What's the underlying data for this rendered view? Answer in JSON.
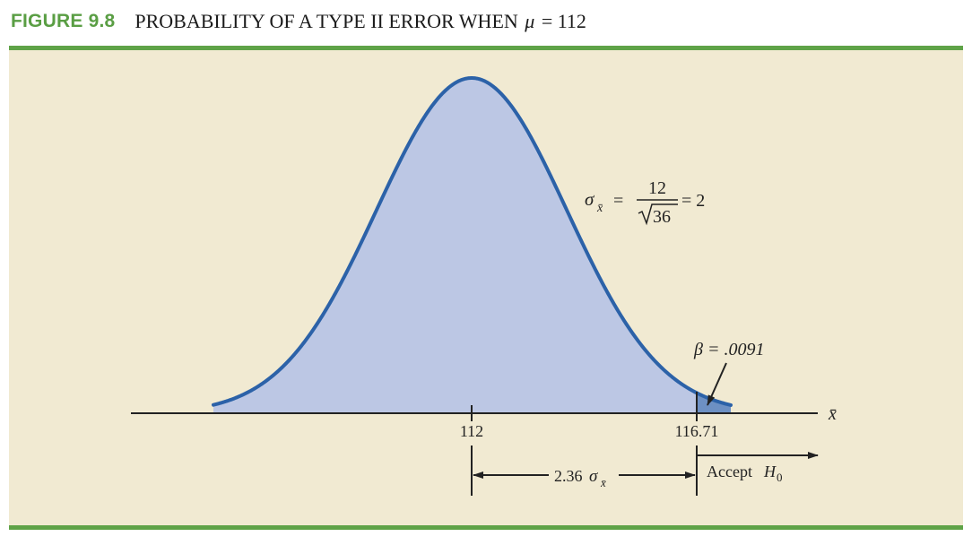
{
  "figure": {
    "label": "FIGURE 9.8",
    "title_prefix": "PROBABILITY OF A TYPE II ERROR WHEN",
    "title_symbol": "μ",
    "title_suffix": "= 112"
  },
  "diagram": {
    "sigma_symbol": "σ",
    "sigma_subscript": "x̄",
    "formula_equals": "=",
    "formula_numerator": "12",
    "formula_denominator": "36",
    "formula_result": "= 2",
    "beta_label": "β = .0091",
    "mean_tick_label": "112",
    "critical_tick_label": "116.71",
    "axis_label": "x̄",
    "distance_number": "2.36",
    "distance_symbol": "σ",
    "distance_subscript": "x̄",
    "accept_text": "Accept",
    "accept_h": "H",
    "accept_sub": "0",
    "colors": {
      "curve_fill": "#bcc7e4",
      "curve_stroke": "#2c62a8",
      "panel": "#f1ead2",
      "rule": "#5fa347"
    }
  }
}
